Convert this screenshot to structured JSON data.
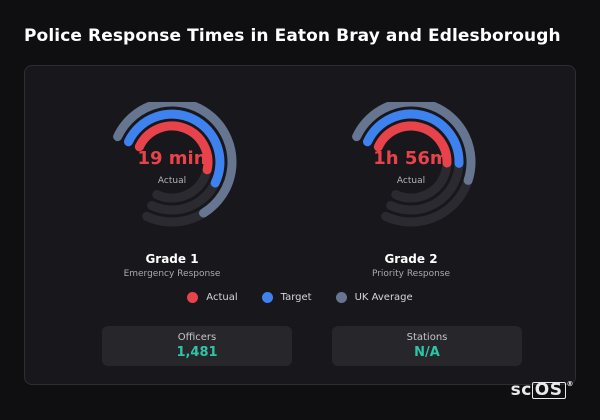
{
  "page": {
    "title": "Police Response Times in Eaton Bray and Edlesborough"
  },
  "colors": {
    "actual": "#e8434a",
    "target": "#3e82ef",
    "uk_average": "#667590",
    "teal": "#2ec4a8"
  },
  "gauges": [
    {
      "value": "19 min",
      "value_label": "Actual",
      "grade": "Grade 1",
      "sub": "Emergency Response",
      "levels": {
        "uk_average": 0.79,
        "target": 0.67,
        "actual": 0.62
      }
    },
    {
      "value": "1h 56m",
      "value_label": "Actual",
      "grade": "Grade 2",
      "sub": "Priority Response",
      "levels": {
        "uk_average": 0.64,
        "target": 0.58,
        "actual": 0.58
      }
    }
  ],
  "legend": {
    "actual": "Actual",
    "target": "Target",
    "uk_average": "UK Average"
  },
  "stats": [
    {
      "label": "Officers",
      "value": "1,481"
    },
    {
      "label": "Stations",
      "value": "N/A"
    }
  ],
  "brand": {
    "prefix": "sc",
    "boxed": "OS",
    "mark": "®"
  }
}
